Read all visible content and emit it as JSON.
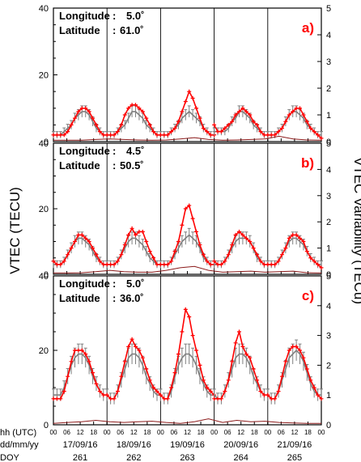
{
  "colors": {
    "vtec": "#ff0000",
    "median": "#7f7f7f",
    "variability": "#8b1a1a",
    "frame": "#000000",
    "panel_label": "#ff0000"
  },
  "labels": {
    "y_left": "VTEC (TECU)",
    "y_right": "VTEC Variability (TECu)",
    "row_hh": "hh (UTC)",
    "row_date": "dd/mm/yy",
    "row_doy": "DOY"
  },
  "chart_data": [
    {
      "type": "line",
      "panel": "a)",
      "longitude_label": "Longitude",
      "longitude_value": "5.0˚",
      "latitude_label": "Latitude",
      "latitude_value": "61.0˚",
      "ylim": [
        0,
        40
      ],
      "y2lim": [
        0,
        5
      ],
      "yticks": [
        "0",
        "20",
        "40"
      ],
      "y2ticks": [
        "0",
        "1",
        "2",
        "3",
        "4",
        "5"
      ],
      "days": [
        {
          "date": "17/09/16",
          "doy": "261",
          "vtec": [
            2,
            2,
            2,
            2,
            3,
            5,
            7,
            9,
            10,
            10,
            9,
            7,
            5,
            3,
            2,
            2
          ],
          "median": [
            2,
            2,
            2,
            3,
            4,
            5,
            7,
            8,
            9,
            9,
            8,
            6,
            4,
            3,
            2,
            2
          ]
        },
        {
          "date": "18/09/16",
          "doy": "262",
          "vtec": [
            2,
            2,
            2,
            3,
            5,
            8,
            10,
            11,
            11,
            10,
            9,
            7,
            5,
            3,
            2,
            2
          ],
          "median": [
            2,
            2,
            2,
            3,
            4,
            5,
            7,
            9,
            9,
            8,
            7,
            5,
            4,
            3,
            2,
            2
          ]
        },
        {
          "date": "19/09/16",
          "doy": "263",
          "vtec": [
            2,
            2,
            2,
            3,
            4,
            6,
            9,
            12,
            15,
            13,
            10,
            7,
            4,
            3,
            2,
            2
          ],
          "median": [
            2,
            2,
            2,
            3,
            4,
            5,
            7,
            8,
            9,
            8,
            7,
            6,
            4,
            3,
            2,
            2
          ]
        },
        {
          "date": "20/09/16",
          "doy": "264",
          "vtec": [
            5,
            3,
            3,
            4,
            5,
            6,
            8,
            9,
            10,
            9,
            8,
            6,
            5,
            3,
            2,
            2
          ],
          "median": [
            3,
            3,
            3,
            3,
            4,
            6,
            7,
            9,
            9,
            8,
            7,
            5,
            4,
            3,
            2,
            2
          ]
        },
        {
          "date": "21/09/16",
          "doy": "265",
          "vtec": [
            2,
            2,
            2,
            3,
            4,
            6,
            8,
            9,
            10,
            10,
            8,
            6,
            4,
            3,
            2,
            1
          ],
          "median": [
            2,
            2,
            2,
            3,
            4,
            6,
            8,
            9,
            9,
            8,
            7,
            5,
            4,
            3,
            2,
            2
          ]
        }
      ],
      "variability": [
        0.05,
        0.05,
        0.05,
        0.08,
        0.1,
        0.08,
        0.06,
        0.05,
        0.06,
        0.1,
        0.15,
        0.08,
        0.05,
        0.06,
        0.08,
        0.1,
        0.2,
        0.1,
        0.06,
        0.05
      ]
    },
    {
      "type": "line",
      "panel": "b)",
      "longitude_label": "Longitude",
      "longitude_value": "4.5˚",
      "latitude_label": "Latitude",
      "latitude_value": "50.5˚",
      "ylim": [
        0,
        40
      ],
      "y2lim": [
        0,
        5
      ],
      "yticks": [
        "0",
        "20",
        "40"
      ],
      "y2ticks": [
        "0",
        "1",
        "2",
        "3",
        "4",
        "5"
      ],
      "days": [
        {
          "date": "17/09/16",
          "doy": "261",
          "vtec": [
            4,
            3,
            3,
            4,
            6,
            8,
            10,
            12,
            12,
            11,
            10,
            8,
            6,
            4,
            3,
            3
          ],
          "median": [
            3,
            3,
            3,
            4,
            6,
            8,
            10,
            11,
            11,
            10,
            9,
            7,
            5,
            4,
            3,
            3
          ]
        },
        {
          "date": "18/09/16",
          "doy": "262",
          "vtec": [
            3,
            3,
            3,
            4,
            6,
            9,
            12,
            14,
            12,
            13,
            13,
            10,
            7,
            5,
            3,
            3
          ],
          "median": [
            3,
            3,
            3,
            4,
            6,
            8,
            10,
            11,
            11,
            10,
            9,
            7,
            5,
            4,
            3,
            3
          ]
        },
        {
          "date": "19/09/16",
          "doy": "263",
          "vtec": [
            3,
            3,
            3,
            4,
            7,
            10,
            15,
            20,
            21,
            17,
            13,
            9,
            6,
            4,
            3,
            3
          ],
          "median": [
            3,
            3,
            3,
            4,
            6,
            8,
            10,
            11,
            12,
            11,
            10,
            8,
            5,
            4,
            3,
            3
          ]
        },
        {
          "date": "20/09/16",
          "doy": "264",
          "vtec": [
            4,
            3,
            3,
            4,
            6,
            9,
            12,
            13,
            12,
            11,
            10,
            8,
            6,
            4,
            3,
            3
          ],
          "median": [
            3,
            3,
            3,
            4,
            6,
            8,
            10,
            11,
            11,
            11,
            10,
            8,
            5,
            4,
            3,
            3
          ]
        },
        {
          "date": "21/09/16",
          "doy": "265",
          "vtec": [
            3,
            3,
            3,
            4,
            6,
            8,
            11,
            12,
            12,
            11,
            10,
            7,
            5,
            4,
            3,
            2
          ],
          "median": [
            3,
            3,
            3,
            4,
            6,
            8,
            10,
            11,
            11,
            10,
            9,
            7,
            5,
            4,
            3,
            3
          ]
        }
      ],
      "variability": [
        0.05,
        0.05,
        0.06,
        0.1,
        0.15,
        0.1,
        0.08,
        0.08,
        0.15,
        0.25,
        0.3,
        0.15,
        0.08,
        0.1,
        0.12,
        0.08,
        0.1,
        0.12,
        0.06,
        0.05
      ]
    },
    {
      "type": "line",
      "panel": "c)",
      "longitude_label": "Longitude",
      "longitude_value": "5.0˚",
      "latitude_label": "Latitude",
      "latitude_value": "36.0˚",
      "ylim": [
        0,
        40
      ],
      "y2lim": [
        0,
        5
      ],
      "yticks": [
        "0",
        "20",
        "40"
      ],
      "y2ticks": [
        "0",
        "1",
        "2",
        "3",
        "4",
        "5"
      ],
      "days": [
        {
          "date": "17/09/16",
          "doy": "261",
          "vtec": [
            7,
            7,
            7,
            9,
            13,
            17,
            20,
            20,
            20,
            19,
            17,
            14,
            11,
            9,
            8,
            8
          ],
          "median": [
            8,
            8,
            8,
            10,
            13,
            16,
            18,
            19,
            19,
            18,
            16,
            13,
            11,
            9,
            8,
            8
          ]
        },
        {
          "date": "18/09/16",
          "doy": "262",
          "vtec": [
            8,
            7,
            7,
            9,
            13,
            17,
            21,
            23,
            21,
            20,
            18,
            15,
            12,
            10,
            9,
            8
          ],
          "median": [
            8,
            7,
            7,
            9,
            12,
            15,
            18,
            19,
            19,
            18,
            16,
            13,
            11,
            9,
            8,
            8
          ]
        },
        {
          "date": "19/09/16",
          "doy": "263",
          "vtec": [
            8,
            7,
            7,
            10,
            14,
            19,
            25,
            31,
            29,
            24,
            20,
            16,
            12,
            10,
            9,
            8
          ],
          "median": [
            8,
            7,
            7,
            9,
            13,
            16,
            18,
            19,
            19,
            18,
            16,
            13,
            11,
            9,
            8,
            8
          ]
        },
        {
          "date": "20/09/16",
          "doy": "264",
          "vtec": [
            7,
            7,
            7,
            9,
            12,
            17,
            22,
            25,
            21,
            19,
            18,
            15,
            12,
            9,
            8,
            8
          ],
          "median": [
            8,
            7,
            7,
            9,
            12,
            15,
            18,
            19,
            19,
            18,
            16,
            13,
            11,
            9,
            8,
            8
          ]
        },
        {
          "date": "21/09/16",
          "doy": "265",
          "vtec": [
            8,
            7,
            7,
            9,
            13,
            17,
            20,
            21,
            21,
            20,
            18,
            15,
            12,
            10,
            8,
            7
          ],
          "median": [
            8,
            7,
            7,
            9,
            12,
            15,
            18,
            19,
            20,
            19,
            17,
            14,
            11,
            9,
            8,
            8
          ]
        }
      ],
      "variability": [
        0.05,
        0.08,
        0.1,
        0.15,
        0.1,
        0.08,
        0.1,
        0.12,
        0.08,
        0.05,
        0.1,
        0.2,
        0.08,
        0.15,
        0.1,
        0.12,
        0.08,
        0.06,
        0.05,
        0.05
      ]
    }
  ],
  "x_axis": {
    "hour_ticks": [
      "00",
      "06",
      "12",
      "18",
      "00"
    ],
    "dates": [
      "17/09/16",
      "18/09/16",
      "19/09/16",
      "20/09/16",
      "21/09/16"
    ],
    "doys": [
      "261",
      "262",
      "263",
      "264",
      "265"
    ]
  }
}
